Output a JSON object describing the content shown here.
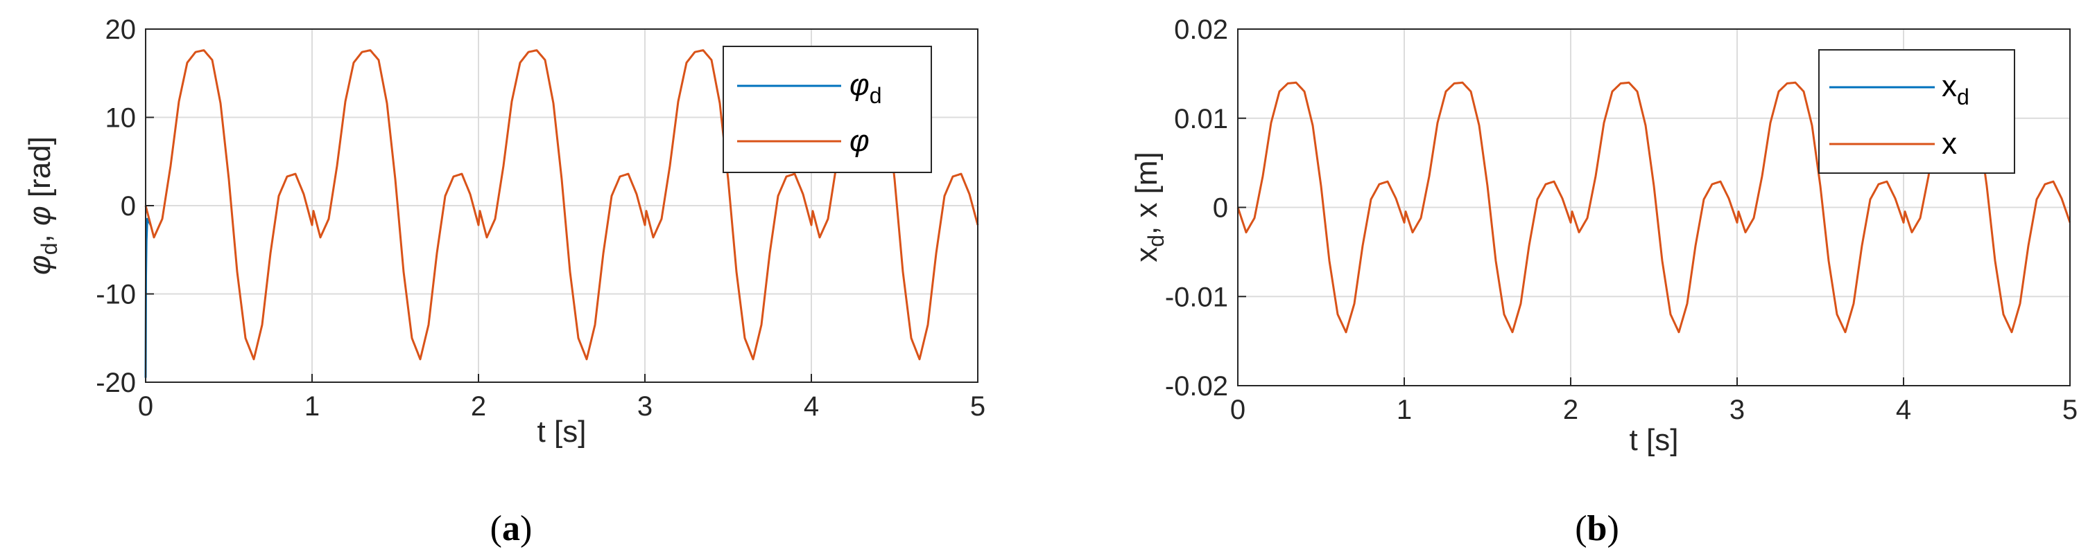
{
  "figure": {
    "panels": [
      {
        "caption_open": "(",
        "caption_letter": "a",
        "caption_close": ")"
      },
      {
        "caption_open": "(",
        "caption_letter": "b",
        "caption_close": ")"
      }
    ]
  },
  "chart_data": [
    {
      "type": "line",
      "title": "",
      "xlabel": "t [s]",
      "ylabel_parts": {
        "sym1": "φ",
        "sub1": "d",
        "sep": ", ",
        "sym2": "φ",
        "unit": " [rad]"
      },
      "xlim": [
        0,
        5
      ],
      "ylim": [
        -20,
        20
      ],
      "xticks": [
        "0",
        "1",
        "2",
        "3",
        "4",
        "5"
      ],
      "yticks": [
        "20",
        "10",
        "0",
        "-10",
        "-20"
      ],
      "grid": true,
      "legend_position": "top-right",
      "series": [
        {
          "name": "φ",
          "name_sub": "d",
          "color": "#0072BD",
          "description": "desired signal, coincident with the actual signal after a brief initial transient",
          "x": [
            0,
            0.002,
            0.005,
            0.01,
            0.03
          ],
          "y": [
            -19.5,
            -8,
            -4,
            -1.5,
            -2.2
          ]
        },
        {
          "name": "φ",
          "name_sub": "",
          "color": "#D95319",
          "x": [
            0,
            0.05,
            0.1,
            0.15,
            0.2,
            0.25,
            0.3,
            0.35,
            0.4,
            0.45,
            0.5,
            0.55,
            0.6,
            0.65,
            0.7,
            0.75,
            0.8,
            0.85,
            0.9,
            0.95,
            1.0
          ],
          "y": [
            0,
            -3.6,
            -1.5,
            4.5,
            11.8,
            16.2,
            17.4,
            17.6,
            16.5,
            11.6,
            3.0,
            -7.5,
            -15.0,
            -17.4,
            -13.5,
            -5.4,
            1.1,
            3.3,
            3.6,
            1.3,
            -2.2
          ],
          "period": 1.0
        }
      ]
    },
    {
      "type": "line",
      "title": "",
      "xlabel": "t [s]",
      "ylabel_parts": {
        "sym1": "x",
        "sub1": "d",
        "sep": ", ",
        "sym2": "x",
        "unit": " [m]"
      },
      "xlim": [
        0,
        5
      ],
      "ylim": [
        -0.02,
        0.02
      ],
      "xticks": [
        "0",
        "1",
        "2",
        "3",
        "4",
        "5"
      ],
      "yticks": [
        "0.02",
        "0.01",
        "0",
        "-0.01",
        "-0.02"
      ],
      "grid": true,
      "legend_position": "top-right",
      "series": [
        {
          "name": "x",
          "name_sub": "d",
          "color": "#0072BD",
          "description": "desired signal, coincident with the actual signal (hidden beneath it)",
          "x": [],
          "y": []
        },
        {
          "name": "x",
          "name_sub": "",
          "color": "#D95319",
          "x": [
            0,
            0.05,
            0.1,
            0.15,
            0.2,
            0.25,
            0.3,
            0.35,
            0.4,
            0.45,
            0.5,
            0.55,
            0.6,
            0.65,
            0.7,
            0.75,
            0.8,
            0.85,
            0.9,
            0.95,
            1.0
          ],
          "y": [
            0,
            -0.0028,
            -0.0012,
            0.0035,
            0.0095,
            0.013,
            0.0139,
            0.014,
            0.013,
            0.0092,
            0.0024,
            -0.006,
            -0.012,
            -0.014,
            -0.0108,
            -0.0043,
            0.0009,
            0.0026,
            0.0029,
            0.001,
            -0.0017
          ],
          "period": 1.0
        }
      ]
    }
  ]
}
